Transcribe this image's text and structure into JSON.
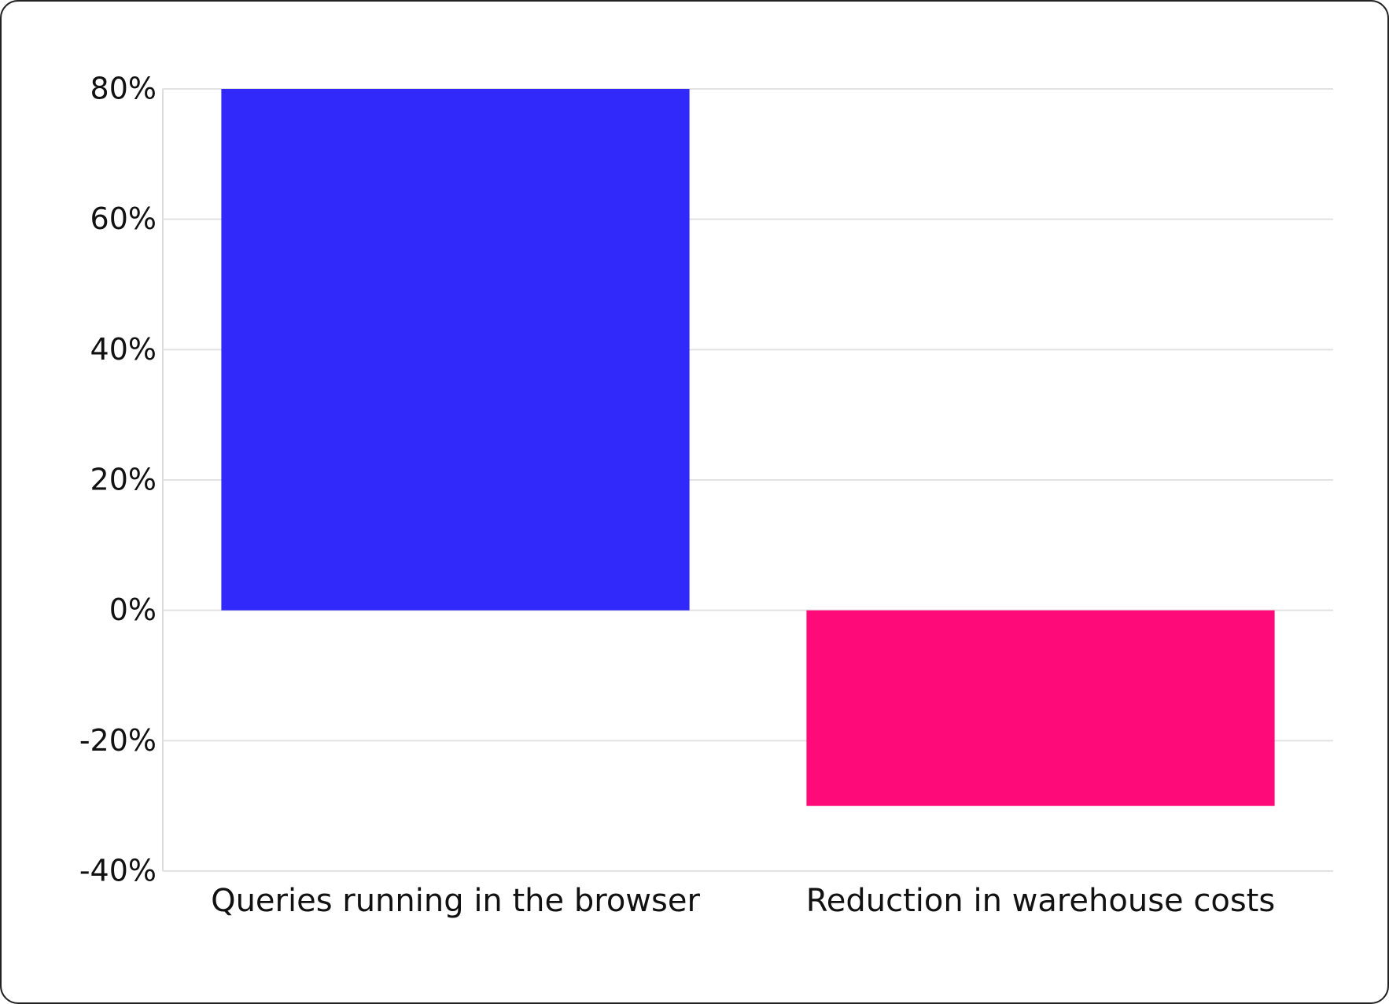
{
  "chart_data": {
    "type": "bar",
    "categories": [
      "Queries running in the browser",
      "Reduction in warehouse costs"
    ],
    "values": [
      80,
      -30
    ],
    "colors": [
      "#3129fa",
      "#ff0a78"
    ],
    "ylim": [
      -40,
      80
    ],
    "yticks": [
      {
        "value": -40,
        "label": "-40%"
      },
      {
        "value": -20,
        "label": "-20%"
      },
      {
        "value": 0,
        "label": "0%"
      },
      {
        "value": 20,
        "label": "20%"
      },
      {
        "value": 40,
        "label": "40%"
      },
      {
        "value": 60,
        "label": "60%"
      },
      {
        "value": 80,
        "label": "80%"
      }
    ],
    "grid": true
  }
}
